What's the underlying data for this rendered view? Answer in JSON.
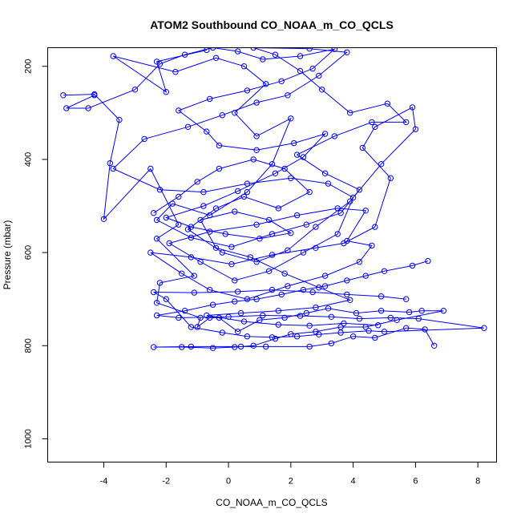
{
  "chart_data": {
    "type": "line",
    "title": "ATOM2 Southbound CO_NOAA_m_CO_QCLS",
    "xlabel": "CO_NOAA_m_CO_QCLS",
    "ylabel": "Pressure (mbar)",
    "xlim": [
      -5.8,
      8.6
    ],
    "ylim": [
      1050,
      160
    ],
    "y_inverted": true,
    "xticks": [
      -4,
      -2,
      0,
      2,
      4,
      6,
      8
    ],
    "yticks": [
      200,
      400,
      600,
      800,
      1000
    ],
    "xtick_labels": [
      "-4",
      "-2",
      "0",
      "2",
      "4",
      "6",
      "8"
    ],
    "ytick_labels": [
      "200",
      "400",
      "600",
      "800",
      "1000"
    ],
    "grid": false,
    "legend": "none",
    "color": "#0000ff",
    "marker": "open-circle",
    "series": [
      {
        "points": [
          [
            -5.3,
            262
          ],
          [
            -4.3,
            260
          ],
          [
            -3.5,
            315
          ],
          [
            -3.8,
            408
          ],
          [
            -4.0,
            528
          ],
          [
            -2.5,
            420
          ],
          [
            -1.6,
            540
          ],
          [
            -2.3,
            570
          ],
          [
            -1.1,
            650
          ],
          [
            -2.2,
            665
          ],
          [
            -2.3,
            708
          ],
          [
            -0.9,
            740
          ],
          [
            -1.0,
            760
          ],
          [
            -0.6,
            740
          ],
          [
            -0.3,
            740
          ],
          [
            0.3,
            770
          ],
          [
            1.0,
            745
          ],
          [
            1.8,
            740
          ],
          [
            2.5,
            730
          ],
          [
            3.2,
            720
          ],
          [
            4.1,
            730
          ],
          [
            4.9,
            725
          ],
          [
            5.8,
            728
          ],
          [
            6.2,
            725
          ],
          [
            6.9,
            725
          ],
          [
            5.4,
            745
          ],
          [
            4.4,
            760
          ],
          [
            3.6,
            760
          ],
          [
            2.8,
            770
          ],
          [
            2.0,
            775
          ],
          [
            1.5,
            785
          ],
          [
            0.8,
            800
          ],
          [
            0.2,
            803
          ],
          [
            -0.5,
            805
          ],
          [
            -1.5,
            803
          ],
          [
            -2.4,
            803
          ],
          [
            -1.2,
            802
          ],
          [
            0.4,
            802
          ],
          [
            1.2,
            802
          ],
          [
            2.6,
            802
          ],
          [
            3.3,
            795
          ],
          [
            4.0,
            780
          ],
          [
            4.7,
            783
          ],
          [
            5.7,
            762
          ],
          [
            6.3,
            765
          ],
          [
            6.6,
            800
          ]
        ]
      },
      {
        "points": [
          [
            6.4,
            618
          ],
          [
            5.9,
            628
          ],
          [
            5.0,
            640
          ],
          [
            4.4,
            650
          ],
          [
            3.8,
            660
          ],
          [
            3.1,
            672
          ],
          [
            2.4,
            680
          ],
          [
            1.7,
            690
          ],
          [
            0.9,
            700
          ],
          [
            0.2,
            705
          ],
          [
            -0.5,
            712
          ],
          [
            -1.4,
            725
          ],
          [
            -2.3,
            735
          ],
          [
            -1.6,
            740
          ],
          [
            0.0,
            738
          ],
          [
            1.1,
            735
          ],
          [
            2.3,
            736
          ],
          [
            3.3,
            738
          ],
          [
            4.2,
            742
          ],
          [
            5.2,
            740
          ],
          [
            6.1,
            742
          ],
          [
            8.2,
            762
          ],
          [
            5.0,
            770
          ],
          [
            4.5,
            768
          ],
          [
            3.6,
            772
          ],
          [
            2.9,
            776
          ],
          [
            2.2,
            780
          ],
          [
            1.4,
            782
          ],
          [
            0.6,
            780
          ],
          [
            -0.2,
            772
          ],
          [
            -1.2,
            760
          ],
          [
            -2.0,
            700
          ],
          [
            -2.4,
            685
          ],
          [
            -1.1,
            686
          ],
          [
            0.3,
            684
          ],
          [
            1.4,
            680
          ],
          [
            2.7,
            685
          ],
          [
            3.8,
            690
          ],
          [
            4.9,
            694
          ],
          [
            5.7,
            700
          ]
        ]
      },
      {
        "points": [
          [
            -0.7,
            165
          ],
          [
            -2.3,
            190
          ],
          [
            -2.0,
            255
          ],
          [
            -3.7,
            178
          ],
          [
            -1.7,
            212
          ],
          [
            -0.4,
            182
          ],
          [
            0.5,
            200
          ],
          [
            1.2,
            238
          ],
          [
            0.2,
            300
          ],
          [
            0.9,
            350
          ],
          [
            2.0,
            312
          ],
          [
            1.4,
            410
          ],
          [
            0.6,
            470
          ],
          [
            -0.6,
            520
          ],
          [
            -1.8,
            495
          ],
          [
            -2.3,
            530
          ],
          [
            -1.2,
            568
          ],
          [
            0.1,
            588
          ],
          [
            1.4,
            560
          ],
          [
            2.5,
            540
          ],
          [
            3.6,
            515
          ],
          [
            4.2,
            465
          ],
          [
            3.1,
            430
          ],
          [
            2.2,
            390
          ],
          [
            3.4,
            350
          ],
          [
            4.6,
            320
          ],
          [
            5.7,
            320
          ],
          [
            5.1,
            280
          ],
          [
            3.9,
            300
          ],
          [
            3.0,
            250
          ],
          [
            2.3,
            210
          ],
          [
            1.5,
            175
          ],
          [
            0.8,
            160
          ],
          [
            2.6,
            162
          ],
          [
            3.8,
            170
          ],
          [
            2.9,
            220
          ],
          [
            1.9,
            262
          ],
          [
            0.9,
            278
          ],
          [
            -0.2,
            305
          ],
          [
            -1.3,
            330
          ],
          [
            -2.7,
            356
          ],
          [
            -3.7,
            420
          ],
          [
            -2.2,
            465
          ],
          [
            -0.8,
            470
          ],
          [
            0.6,
            452
          ],
          [
            2.0,
            440
          ],
          [
            3.2,
            452
          ],
          [
            4.0,
            482
          ],
          [
            3.5,
            560
          ],
          [
            2.4,
            600
          ],
          [
            1.3,
            640
          ],
          [
            0.2,
            660
          ],
          [
            -0.9,
            620
          ],
          [
            -1.9,
            580
          ],
          [
            -0.6,
            555
          ],
          [
            0.9,
            540
          ],
          [
            2.2,
            520
          ],
          [
            3.5,
            505
          ],
          [
            4.4,
            510
          ],
          [
            3.8,
            575
          ],
          [
            4.6,
            585
          ],
          [
            4.2,
            620
          ],
          [
            3.1,
            650
          ],
          [
            1.9,
            672
          ],
          [
            0.6,
            700
          ],
          [
            -0.6,
            680
          ],
          [
            -1.5,
            645
          ],
          [
            -2.5,
            600
          ],
          [
            -1.2,
            610
          ],
          [
            0.1,
            625
          ],
          [
            1.4,
            605
          ],
          [
            2.8,
            590
          ],
          [
            3.7,
            580
          ],
          [
            4.7,
            545
          ],
          [
            5.2,
            440
          ],
          [
            4.3,
            375
          ],
          [
            4.7,
            330
          ],
          [
            5.9,
            288
          ],
          [
            6.0,
            335
          ],
          [
            4.9,
            410
          ],
          [
            3.9,
            490
          ],
          [
            2.8,
            545
          ],
          [
            1.9,
            595
          ],
          [
            0.9,
            620
          ],
          [
            -0.2,
            600
          ],
          [
            -1.3,
            550
          ],
          [
            -0.4,
            505
          ],
          [
            0.5,
            480
          ],
          [
            1.6,
            505
          ],
          [
            2.6,
            470
          ],
          [
            1.8,
            420
          ],
          [
            0.8,
            400
          ],
          [
            -0.3,
            420
          ],
          [
            -1.0,
            448
          ],
          [
            -1.6,
            480
          ],
          [
            -2.4,
            515
          ]
        ]
      },
      {
        "points": [
          [
            -4.3,
            262
          ],
          [
            -5.2,
            290
          ],
          [
            -4.5,
            290
          ],
          [
            -3.0,
            250
          ],
          [
            -2.2,
            195
          ],
          [
            -1.4,
            175
          ],
          [
            -0.5,
            160
          ],
          [
            0.3,
            168
          ],
          [
            1.1,
            185
          ],
          [
            2.3,
            178
          ],
          [
            3.4,
            163
          ],
          [
            2.7,
            205
          ],
          [
            1.7,
            232
          ],
          [
            0.6,
            252
          ],
          [
            -0.6,
            270
          ],
          [
            -1.6,
            295
          ],
          [
            -0.7,
            340
          ],
          [
            -0.3,
            370
          ],
          [
            0.9,
            380
          ],
          [
            2.1,
            365
          ],
          [
            3.1,
            345
          ],
          [
            2.4,
            395
          ],
          [
            1.5,
            430
          ],
          [
            0.3,
            468
          ],
          [
            -0.8,
            500
          ],
          [
            -2.0,
            525
          ],
          [
            -1.2,
            545
          ],
          [
            -0.1,
            560
          ],
          [
            1.0,
            570
          ],
          [
            2.0,
            558
          ],
          [
            1.3,
            530
          ],
          [
            0.2,
            512
          ],
          [
            -0.9,
            530
          ],
          [
            -0.4,
            590
          ],
          [
            0.7,
            610
          ],
          [
            1.8,
            645
          ],
          [
            2.9,
            675
          ],
          [
            3.9,
            702
          ],
          [
            2.8,
            718
          ],
          [
            1.6,
            725
          ],
          [
            0.4,
            730
          ],
          [
            -0.7,
            735
          ],
          [
            0.5,
            748
          ],
          [
            1.6,
            755
          ],
          [
            2.6,
            757
          ],
          [
            3.7,
            752
          ],
          [
            4.8,
            756
          ]
        ]
      }
    ]
  }
}
